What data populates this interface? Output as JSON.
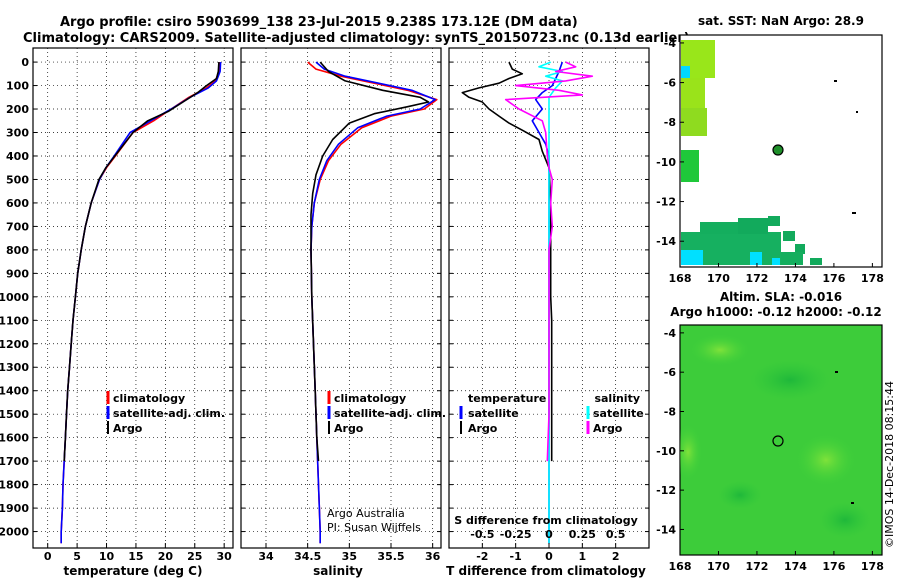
{
  "header": {
    "title_line1": "Argo profile: csiro 5903699_138 23-Jul-2015 9.238S 173.12E (DM data)",
    "title_line2": "Climatology: CARS2009. Satellite-adjusted climatology: synTS_20150723.nc (0.13d earlier)"
  },
  "colors": {
    "climatology": "#ff0000",
    "satellite": "#0000ff",
    "argo": "#000000",
    "salinity_diff": "#ff00ff",
    "salinity_sat": "#00ffff"
  },
  "credits": {
    "line1": "Argo Australia",
    "line2": "PI: Susan Wijffels"
  },
  "watermark": "©IMOS 14-Dec-2018 08:15:44",
  "chart_data": [
    {
      "type": "line",
      "id": "temperature",
      "xlabel": "temperature (deg C)",
      "ylabel": "depth",
      "xlim": [
        -2.5,
        31.5
      ],
      "ylim": [
        2070,
        0
      ],
      "xticks": [
        0,
        5,
        10,
        15,
        20,
        25,
        30
      ],
      "yticks": [
        0,
        100,
        200,
        300,
        400,
        500,
        600,
        700,
        800,
        900,
        1000,
        1100,
        1200,
        1300,
        1400,
        1500,
        1600,
        1700,
        1800,
        1900,
        2000
      ],
      "legend": [
        "climatology",
        "satellite-adj. clim.",
        "Argo"
      ],
      "series": [
        {
          "name": "climatology",
          "color": "#ff0000",
          "points": [
            [
              29.2,
              0
            ],
            [
              29.1,
              40
            ],
            [
              28.5,
              80
            ],
            [
              27,
              110
            ],
            [
              24,
              150
            ],
            [
              21,
              200
            ],
            [
              18,
              250
            ],
            [
              14.5,
              300
            ],
            [
              11.5,
              400
            ],
            [
              10,
              450
            ],
            [
              8.8,
              500
            ],
            [
              7.4,
              600
            ],
            [
              6.4,
              700
            ],
            [
              5.7,
              800
            ],
            [
              5.1,
              900
            ],
            [
              4.7,
              1000
            ],
            [
              4.3,
              1100
            ],
            [
              4,
              1200
            ],
            [
              3.7,
              1300
            ],
            [
              3.4,
              1400
            ],
            [
              3.2,
              1500
            ],
            [
              3,
              1600
            ],
            [
              2.8,
              1700
            ],
            [
              2.6,
              1800
            ],
            [
              2.5,
              1900
            ],
            [
              2.3,
              2000
            ],
            [
              2.3,
              2050
            ]
          ]
        },
        {
          "name": "satellite-adj. clim.",
          "color": "#0000ff",
          "points": [
            [
              29.4,
              0
            ],
            [
              29.3,
              40
            ],
            [
              28.7,
              80
            ],
            [
              27.3,
              110
            ],
            [
              24.2,
              150
            ],
            [
              21,
              200
            ],
            [
              17.5,
              250
            ],
            [
              14,
              300
            ],
            [
              11.3,
              400
            ],
            [
              9.9,
              450
            ],
            [
              8.8,
              500
            ],
            [
              7.4,
              600
            ],
            [
              6.4,
              700
            ],
            [
              5.7,
              800
            ],
            [
              5.1,
              900
            ],
            [
              4.7,
              1000
            ],
            [
              4.3,
              1100
            ],
            [
              4,
              1200
            ],
            [
              3.7,
              1300
            ],
            [
              3.4,
              1400
            ],
            [
              3.2,
              1500
            ],
            [
              3,
              1600
            ],
            [
              2.8,
              1700
            ],
            [
              2.6,
              1800
            ],
            [
              2.5,
              1900
            ],
            [
              2.3,
              2000
            ],
            [
              2.3,
              2050
            ]
          ]
        },
        {
          "name": "Argo",
          "color": "#000000",
          "points": [
            [
              29.1,
              0
            ],
            [
              29,
              40
            ],
            [
              28.7,
              70
            ],
            [
              27,
              100
            ],
            [
              25.5,
              130
            ],
            [
              23,
              170
            ],
            [
              20.5,
              210
            ],
            [
              17,
              250
            ],
            [
              14.5,
              300
            ],
            [
              11.4,
              400
            ],
            [
              9.9,
              450
            ],
            [
              8.7,
              500
            ],
            [
              7.4,
              600
            ],
            [
              6.4,
              700
            ],
            [
              5.7,
              800
            ],
            [
              5.1,
              900
            ],
            [
              4.7,
              1000
            ],
            [
              4.3,
              1100
            ],
            [
              4,
              1200
            ],
            [
              3.7,
              1300
            ],
            [
              3.4,
              1400
            ],
            [
              3.2,
              1500
            ],
            [
              3,
              1600
            ],
            [
              2.8,
              1700
            ]
          ]
        }
      ]
    },
    {
      "type": "line",
      "id": "salinity",
      "xlabel": "salinity",
      "ylabel": "",
      "xlim": [
        33.7,
        36.1
      ],
      "ylim": [
        2070,
        0
      ],
      "xticks": [
        34,
        34.5,
        35,
        35.5,
        36
      ],
      "legend": [
        "climatology",
        "satellite-adj. clim.",
        "Argo"
      ],
      "series": [
        {
          "name": "climatology",
          "color": "#ff0000",
          "points": [
            [
              34.5,
              0
            ],
            [
              34.6,
              30
            ],
            [
              34.9,
              60
            ],
            [
              35.3,
              90
            ],
            [
              35.7,
              120
            ],
            [
              36.05,
              160
            ],
            [
              35.9,
              200
            ],
            [
              35.5,
              230
            ],
            [
              35.15,
              280
            ],
            [
              34.9,
              350
            ],
            [
              34.75,
              420
            ],
            [
              34.65,
              500
            ],
            [
              34.58,
              600
            ],
            [
              34.55,
              700
            ],
            [
              34.54,
              800
            ],
            [
              34.55,
              1000
            ],
            [
              34.57,
              1200
            ],
            [
              34.59,
              1400
            ],
            [
              34.61,
              1600
            ],
            [
              34.63,
              1800
            ],
            [
              34.65,
              2000
            ],
            [
              34.65,
              2050
            ]
          ]
        },
        {
          "name": "satellite-adj. clim.",
          "color": "#0000ff",
          "points": [
            [
              34.6,
              0
            ],
            [
              34.7,
              30
            ],
            [
              34.95,
              60
            ],
            [
              35.35,
              90
            ],
            [
              35.75,
              120
            ],
            [
              36.03,
              160
            ],
            [
              35.85,
              200
            ],
            [
              35.45,
              230
            ],
            [
              35.1,
              280
            ],
            [
              34.87,
              350
            ],
            [
              34.73,
              420
            ],
            [
              34.64,
              500
            ],
            [
              34.58,
              600
            ],
            [
              34.55,
              700
            ],
            [
              34.54,
              800
            ],
            [
              34.55,
              1000
            ],
            [
              34.57,
              1200
            ],
            [
              34.59,
              1400
            ],
            [
              34.61,
              1600
            ],
            [
              34.63,
              1800
            ],
            [
              34.65,
              2000
            ],
            [
              34.65,
              2050
            ]
          ]
        },
        {
          "name": "Argo",
          "color": "#000000",
          "points": [
            [
              34.65,
              0
            ],
            [
              34.75,
              40
            ],
            [
              34.95,
              80
            ],
            [
              35.4,
              120
            ],
            [
              35.85,
              150
            ],
            [
              35.95,
              170
            ],
            [
              35.7,
              190
            ],
            [
              35.3,
              220
            ],
            [
              35.0,
              260
            ],
            [
              34.8,
              330
            ],
            [
              34.68,
              400
            ],
            [
              34.6,
              480
            ],
            [
              34.56,
              560
            ],
            [
              34.54,
              650
            ],
            [
              34.54,
              800
            ],
            [
              34.55,
              1000
            ],
            [
              34.57,
              1200
            ],
            [
              34.59,
              1400
            ],
            [
              34.61,
              1600
            ],
            [
              34.63,
              1700
            ]
          ]
        }
      ]
    },
    {
      "type": "line",
      "id": "differences",
      "xlabel": "T difference from climatology",
      "top_axis_label": "S difference from climatology",
      "xlim": [
        -3,
        3
      ],
      "ylim": [
        2070,
        0
      ],
      "xticks": [
        -2,
        -1,
        0,
        1,
        2
      ],
      "xticklabels": [
        "-2",
        "-1",
        "0",
        "1",
        "2"
      ],
      "top_xticks": [
        -0.5,
        -0.25,
        0,
        0.25,
        0.5
      ],
      "top_xticklabels": [
        "-0.5",
        "-0.25",
        "0",
        "0.25",
        "0.5"
      ],
      "legend_temperature": {
        "heading": "temperature",
        "items": [
          "satellite",
          "Argo"
        ]
      },
      "legend_salinity": {
        "heading": "salinity",
        "items": [
          "satellite",
          "Argo"
        ]
      },
      "series": [
        {
          "name": "T satellite",
          "color": "#0000ff",
          "points": [
            [
              0.4,
              0
            ],
            [
              0.3,
              40
            ],
            [
              0.2,
              70
            ],
            [
              0.1,
              100
            ],
            [
              -0.2,
              130
            ],
            [
              -0.4,
              160
            ],
            [
              -0.2,
              200
            ],
            [
              -0.5,
              250
            ],
            [
              -0.3,
              300
            ],
            [
              -0.1,
              350
            ],
            [
              0,
              400
            ],
            [
              0,
              600
            ],
            [
              0,
              2050
            ]
          ]
        },
        {
          "name": "T Argo",
          "color": "#000000",
          "points": [
            [
              -1.2,
              0
            ],
            [
              -1.1,
              30
            ],
            [
              -0.8,
              50
            ],
            [
              -1.2,
              70
            ],
            [
              -1.5,
              90
            ],
            [
              -2.1,
              110
            ],
            [
              -2.6,
              130
            ],
            [
              -2.4,
              150
            ],
            [
              -2.0,
              170
            ],
            [
              -1.8,
              200
            ],
            [
              -1.5,
              230
            ],
            [
              -1.2,
              260
            ],
            [
              -0.8,
              290
            ],
            [
              -0.3,
              330
            ],
            [
              -0.2,
              380
            ],
            [
              0,
              450
            ],
            [
              0.05,
              600
            ],
            [
              0.05,
              1000
            ],
            [
              0.08,
              1100
            ],
            [
              0.08,
              1700
            ]
          ]
        },
        {
          "name": "S satellite",
          "color": "#00ffff",
          "points": [
            [
              0.05,
              0
            ],
            [
              -0.3,
              20
            ],
            [
              0.4,
              40
            ],
            [
              -0.1,
              60
            ],
            [
              0.4,
              80
            ],
            [
              0.2,
              110
            ],
            [
              0,
              150
            ],
            [
              0,
              500
            ],
            [
              0,
              2050
            ]
          ]
        },
        {
          "name": "S Argo",
          "color": "#ff00ff",
          "points": [
            [
              0.5,
              0
            ],
            [
              0.8,
              20
            ],
            [
              0.2,
              40
            ],
            [
              1.3,
              60
            ],
            [
              0.5,
              80
            ],
            [
              -1.0,
              100
            ],
            [
              0.3,
              120
            ],
            [
              1.0,
              140
            ],
            [
              -1.3,
              160
            ],
            [
              -0.9,
              200
            ],
            [
              -0.2,
              250
            ],
            [
              -0.1,
              300
            ],
            [
              -0.05,
              400
            ],
            [
              0,
              450
            ],
            [
              0.1,
              500
            ],
            [
              0.05,
              600
            ],
            [
              0.1,
              700
            ],
            [
              0,
              800
            ],
            [
              0,
              1000
            ],
            [
              0,
              1500
            ],
            [
              -0.05,
              1700
            ]
          ]
        }
      ]
    },
    {
      "type": "heatmap",
      "id": "sst_map",
      "title": "sat. SST: NaN Argo: 28.9",
      "xlim": [
        168,
        178.5
      ],
      "ylim": [
        -15.3,
        -3.6
      ],
      "xticks": [
        168,
        170,
        172,
        174,
        176,
        178
      ],
      "yticks": [
        -4,
        -6,
        -8,
        -10,
        -12,
        -14
      ],
      "float_position": [
        173.12,
        -9.238
      ]
    },
    {
      "type": "heatmap",
      "id": "sla_map",
      "title": "Altim. SLA: -0.016",
      "subtitle": "Argo h1000: -0.12 h2000: -0.12",
      "xlim": [
        168,
        178.5
      ],
      "ylim": [
        -15.3,
        -3.6
      ],
      "xticks": [
        168,
        170,
        172,
        174,
        176,
        178
      ],
      "yticks": [
        -4,
        -6,
        -8,
        -10,
        -12,
        -14
      ],
      "float_position": [
        173.12,
        -9.238
      ]
    }
  ]
}
